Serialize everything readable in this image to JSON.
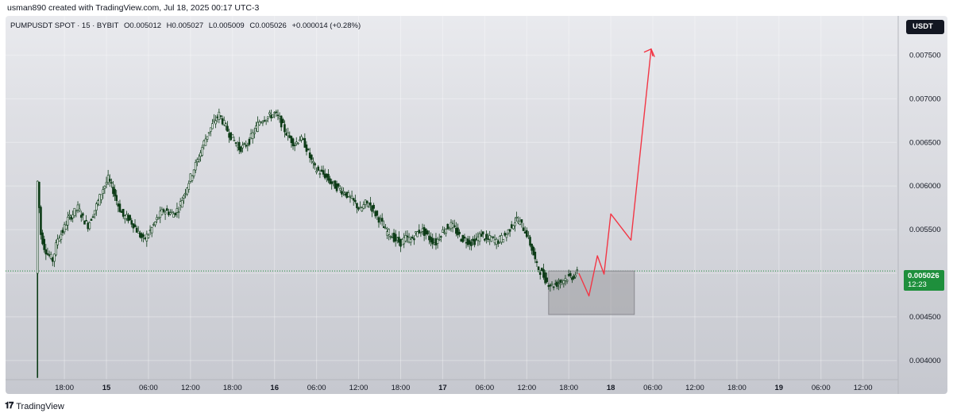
{
  "header": {
    "created_line": "usman890 created with TradingView.com, Jul 18, 2025 00:17 UTC-3"
  },
  "symbol": {
    "name": "PUMPUSDT SPOT · 15 · BYBIT",
    "open": "O0.005012",
    "high": "H0.005027",
    "low": "L0.005009",
    "close": "C0.005026",
    "change": "+0.000014 (+0.28%)"
  },
  "currency_label": "USDT",
  "last_price": {
    "value": "0.005026",
    "countdown": "12:23"
  },
  "footer": {
    "brand": "TradingView"
  },
  "colors": {
    "candle": "#0c3b16",
    "projection": "#f23645",
    "zone": "#9c9ca1",
    "price_tag": "#1e8f3c"
  },
  "chart_data": {
    "type": "candlestick",
    "y_ticks": [
      "0.007500",
      "0.007000",
      "0.006500",
      "0.006000",
      "0.005500",
      "0.005000",
      "0.004500",
      "0.004000"
    ],
    "ylim": [
      0.00378,
      0.00795
    ],
    "x_ticks": [
      {
        "label": "18:00",
        "x": 0.25,
        "bold": false
      },
      {
        "label": "15",
        "x": 0.5,
        "bold": true
      },
      {
        "label": "06:00",
        "x": 0.75,
        "bold": false
      },
      {
        "label": "12:00",
        "x": 1.0,
        "bold": false
      },
      {
        "label": "18:00",
        "x": 1.25,
        "bold": false
      },
      {
        "label": "16",
        "x": 1.5,
        "bold": true
      },
      {
        "label": "06:00",
        "x": 1.75,
        "bold": false
      },
      {
        "label": "12:00",
        "x": 2.0,
        "bold": false
      },
      {
        "label": "18:00",
        "x": 2.25,
        "bold": false
      },
      {
        "label": "17",
        "x": 2.5,
        "bold": true
      },
      {
        "label": "06:00",
        "x": 2.75,
        "bold": false
      },
      {
        "label": "12:00",
        "x": 3.0,
        "bold": false
      },
      {
        "label": "18:00",
        "x": 3.25,
        "bold": false
      },
      {
        "label": "18",
        "x": 3.5,
        "bold": true
      },
      {
        "label": "06:00",
        "x": 3.75,
        "bold": false
      },
      {
        "label": "12:00",
        "x": 4.0,
        "bold": false
      },
      {
        "label": "18:00",
        "x": 4.25,
        "bold": false
      },
      {
        "label": "19",
        "x": 4.5,
        "bold": true
      },
      {
        "label": "06:00",
        "x": 4.75,
        "bold": false
      },
      {
        "label": "12:00",
        "x": 5.0,
        "bold": false
      }
    ],
    "xlim": [
      -0.1,
      5.2
    ],
    "price_path": [
      [
        0.09,
        0.005
      ],
      [
        0.1,
        0.00605
      ],
      [
        0.12,
        0.00545
      ],
      [
        0.14,
        0.0053
      ],
      [
        0.16,
        0.00522
      ],
      [
        0.19,
        0.00515
      ],
      [
        0.22,
        0.0054
      ],
      [
        0.25,
        0.00548
      ],
      [
        0.28,
        0.00562
      ],
      [
        0.31,
        0.00568
      ],
      [
        0.34,
        0.00575
      ],
      [
        0.37,
        0.00563
      ],
      [
        0.4,
        0.00555
      ],
      [
        0.43,
        0.00568
      ],
      [
        0.46,
        0.00582
      ],
      [
        0.49,
        0.00597
      ],
      [
        0.52,
        0.00608
      ],
      [
        0.55,
        0.00595
      ],
      [
        0.58,
        0.00578
      ],
      [
        0.61,
        0.00565
      ],
      [
        0.64,
        0.00563
      ],
      [
        0.67,
        0.00556
      ],
      [
        0.7,
        0.00546
      ],
      [
        0.73,
        0.00538
      ],
      [
        0.76,
        0.00545
      ],
      [
        0.79,
        0.00555
      ],
      [
        0.82,
        0.00565
      ],
      [
        0.85,
        0.00572
      ],
      [
        0.88,
        0.0057
      ],
      [
        0.91,
        0.00568
      ],
      [
        0.94,
        0.00575
      ],
      [
        0.97,
        0.0059
      ],
      [
        1.0,
        0.00605
      ],
      [
        1.03,
        0.0062
      ],
      [
        1.06,
        0.00633
      ],
      [
        1.09,
        0.0065
      ],
      [
        1.12,
        0.00663
      ],
      [
        1.15,
        0.00673
      ],
      [
        1.18,
        0.00682
      ],
      [
        1.21,
        0.00671
      ],
      [
        1.24,
        0.0066
      ],
      [
        1.27,
        0.00652
      ],
      [
        1.3,
        0.00643
      ],
      [
        1.33,
        0.00645
      ],
      [
        1.36,
        0.00652
      ],
      [
        1.39,
        0.00663
      ],
      [
        1.42,
        0.00674
      ],
      [
        1.45,
        0.00678
      ],
      [
        1.48,
        0.0068
      ],
      [
        1.51,
        0.00683
      ],
      [
        1.54,
        0.00676
      ],
      [
        1.57,
        0.00664
      ],
      [
        1.6,
        0.00655
      ],
      [
        1.63,
        0.00648
      ],
      [
        1.66,
        0.00655
      ],
      [
        1.69,
        0.00648
      ],
      [
        1.72,
        0.00633
      ],
      [
        1.75,
        0.0062
      ],
      [
        1.78,
        0.00616
      ],
      [
        1.81,
        0.00612
      ],
      [
        1.84,
        0.00605
      ],
      [
        1.87,
        0.006
      ],
      [
        1.9,
        0.00596
      ],
      [
        1.93,
        0.00592
      ],
      [
        1.96,
        0.00586
      ],
      [
        1.99,
        0.0058
      ],
      [
        2.02,
        0.00572
      ],
      [
        2.05,
        0.0058
      ],
      [
        2.08,
        0.00578
      ],
      [
        2.11,
        0.00568
      ],
      [
        2.14,
        0.0056
      ],
      [
        2.17,
        0.00548
      ],
      [
        2.2,
        0.00545
      ],
      [
        2.23,
        0.00538
      ],
      [
        2.26,
        0.00535
      ],
      [
        2.29,
        0.0054
      ],
      [
        2.32,
        0.00538
      ],
      [
        2.35,
        0.00545
      ],
      [
        2.38,
        0.0055
      ],
      [
        2.41,
        0.00545
      ],
      [
        2.44,
        0.00538
      ],
      [
        2.47,
        0.00535
      ],
      [
        2.5,
        0.00546
      ],
      [
        2.53,
        0.00552
      ],
      [
        2.56,
        0.00555
      ],
      [
        2.59,
        0.00548
      ],
      [
        2.62,
        0.0054
      ],
      [
        2.65,
        0.00538
      ],
      [
        2.68,
        0.00535
      ],
      [
        2.71,
        0.00538
      ],
      [
        2.74,
        0.00545
      ],
      [
        2.77,
        0.00538
      ],
      [
        2.8,
        0.0054
      ],
      [
        2.83,
        0.00536
      ],
      [
        2.86,
        0.0054
      ],
      [
        2.89,
        0.00545
      ],
      [
        2.92,
        0.00555
      ],
      [
        2.95,
        0.00562
      ],
      [
        2.98,
        0.00555
      ],
      [
        3.01,
        0.00545
      ],
      [
        3.04,
        0.00528
      ],
      [
        3.07,
        0.00508
      ],
      [
        3.1,
        0.005
      ],
      [
        3.13,
        0.0049
      ],
      [
        3.16,
        0.00486
      ],
      [
        3.19,
        0.00488
      ],
      [
        3.22,
        0.00492
      ],
      [
        3.25,
        0.00495
      ],
      [
        3.28,
        0.00496
      ],
      [
        3.31,
        0.005
      ]
    ],
    "projection_path": [
      [
        3.31,
        0.005
      ],
      [
        3.37,
        0.00474
      ],
      [
        3.42,
        0.0052
      ],
      [
        3.46,
        0.00499
      ],
      [
        3.5,
        0.00568
      ],
      [
        3.62,
        0.00538
      ],
      [
        3.74,
        0.00757
      ],
      [
        3.76,
        0.00748
      ]
    ],
    "zone": {
      "x_start": 3.13,
      "x_end": 3.64,
      "y_low": 0.004527,
      "y_high": 0.005026
    },
    "last_price_line": 0.005026
  }
}
